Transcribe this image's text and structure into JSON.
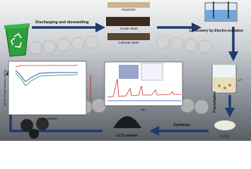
{
  "steps": {
    "dismantling": "Discharging and dismantling",
    "separator": "Separator",
    "anode": "Anode sheet",
    "cathode": "Cathode sheet",
    "recovery": "Li recovery by Electro-oxidation",
    "ion": "Li⁺",
    "precipitation": "Precipitation",
    "carbonate": "Li₂CO₃",
    "synthesis": "Synthesis",
    "product": "LCO powder"
  },
  "cycling_plot": {
    "x_label": "Cycle number",
    "y_label": "Specific Charge Capacity (mAh/g)",
    "y2_label": "Coulombic efficiency (%)"
  },
  "xrd_plot": {
    "x_label": "2θ(°)"
  }
}
